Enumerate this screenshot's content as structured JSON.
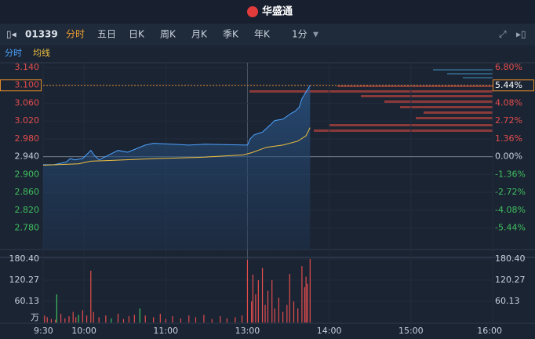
{
  "header": {
    "app": "华盛通"
  },
  "toolbar": {
    "code": "01339",
    "tabs": [
      "分时",
      "五日",
      "日K",
      "周K",
      "月K",
      "季K",
      "年K"
    ],
    "interval": "1分"
  },
  "chart_data": {
    "type": "line",
    "xlim": [
      0,
      330
    ],
    "xticks": [
      {
        "value": 0,
        "label": "9:30"
      },
      {
        "value": 30,
        "label": "10:00"
      },
      {
        "value": 90,
        "label": "11:00"
      },
      {
        "value": 150,
        "label": "13:00"
      },
      {
        "value": 210,
        "label": "14:00"
      },
      {
        "value": 270,
        "label": "15:00"
      },
      {
        "value": 330,
        "label": "16:00"
      }
    ],
    "ylim": [
      2.76,
      3.14
    ],
    "yticks": [
      {
        "value": 3.14,
        "label": "3.140"
      },
      {
        "value": 3.1,
        "label": "3.100"
      },
      {
        "value": 3.06,
        "label": "3.060"
      },
      {
        "value": 3.02,
        "label": "3.020"
      },
      {
        "value": 2.98,
        "label": "2.980"
      },
      {
        "value": 2.94,
        "label": "2.940"
      },
      {
        "value": 2.9,
        "label": "2.900"
      },
      {
        "value": 2.86,
        "label": "2.860"
      },
      {
        "value": 2.82,
        "label": "2.820"
      },
      {
        "value": 2.78,
        "label": "2.780"
      }
    ],
    "y2lim": [
      -6.122,
      6.803
    ],
    "y2ticks": [
      {
        "value": 6.8,
        "label": "6.80%"
      },
      {
        "value": 5.44,
        "label": "5.44%"
      },
      {
        "value": 4.08,
        "label": "4.08%"
      },
      {
        "value": 2.72,
        "label": "2.72%"
      },
      {
        "value": 1.36,
        "label": "1.36%"
      },
      {
        "value": 0,
        "label": "0.00%"
      },
      {
        "value": -1.36,
        "label": "-1.36%"
      },
      {
        "value": -2.72,
        "label": "-2.72%"
      },
      {
        "value": -4.08,
        "label": "-4.08%"
      },
      {
        "value": -5.44,
        "label": "-5.44%"
      }
    ],
    "prev_close": 2.94,
    "last": 3.1,
    "series": [
      {
        "name": "分时",
        "color": "#4da3ff",
        "x": [
          0,
          8,
          17,
          20,
          23,
          29,
          35,
          37,
          41,
          49,
          55,
          62,
          75,
          81,
          95,
          107,
          119,
          150,
          152,
          155,
          161,
          167,
          170,
          176,
          182,
          185,
          188,
          190,
          193,
          196
        ],
        "values": [
          2.922,
          2.922,
          2.928,
          2.936,
          2.933,
          2.936,
          2.954,
          2.945,
          2.933,
          2.945,
          2.954,
          2.95,
          2.966,
          2.97,
          2.968,
          2.966,
          2.968,
          2.966,
          2.98,
          2.989,
          2.995,
          3.012,
          3.021,
          3.024,
          3.037,
          3.042,
          3.051,
          3.07,
          3.085,
          3.1
        ]
      },
      {
        "name": "均线",
        "color": "#f0c040",
        "x": [
          0,
          26,
          35,
          84,
          118,
          147,
          153,
          164,
          176,
          187,
          193,
          196
        ],
        "values": [
          2.921,
          2.924,
          2.93,
          2.936,
          2.939,
          2.944,
          2.949,
          2.961,
          2.966,
          2.975,
          2.987,
          3.005
        ]
      }
    ],
    "volume": {
      "unit": "万",
      "ylim": [
        0,
        180.4
      ],
      "yticks": [
        60.13,
        120.27,
        {
          "value": 180.4,
          "label": "180.40"
        }
      ],
      "x": [
        1,
        3,
        6,
        9,
        10,
        13,
        16,
        19,
        22,
        24,
        26,
        29,
        32,
        35,
        37,
        41,
        46,
        50,
        55,
        59,
        63,
        67,
        71,
        75,
        81,
        86,
        90,
        95,
        101,
        107,
        112,
        118,
        124,
        130,
        135,
        141,
        146,
        150,
        153,
        154,
        156,
        158,
        161,
        163,
        165,
        168,
        170,
        173,
        176,
        179,
        181,
        184,
        187,
        190,
        192,
        193,
        194,
        196
      ],
      "values": [
        20,
        15,
        10,
        8,
        80,
        25,
        12,
        18,
        30,
        15,
        22,
        35,
        20,
        147,
        30,
        15,
        20,
        12,
        25,
        10,
        18,
        22,
        40,
        20,
        15,
        25,
        10,
        18,
        12,
        20,
        15,
        22,
        10,
        18,
        12,
        15,
        20,
        178,
        60,
        136,
        80,
        120,
        155,
        50,
        90,
        120,
        40,
        70,
        30,
        50,
        138,
        60,
        40,
        160,
        100,
        130,
        110,
        180.4
      ],
      "colors": [
        "#e24d4d",
        "#e24d4d",
        "#e24d4d",
        "#e24d4d",
        "#3fbf5f",
        "#e24d4d",
        "#e24d4d",
        "#e24d4d",
        "#e24d4d",
        "#e24d4d",
        "#3fbf5f",
        "#e24d4d",
        "#e24d4d",
        "#e24d4d",
        "#e24d4d",
        "#e24d4d",
        "#e24d4d",
        "#3fbf5f",
        "#e24d4d",
        "#e24d4d",
        "#e24d4d",
        "#e24d4d",
        "#3fbf5f",
        "#e24d4d",
        "#e24d4d",
        "#e24d4d",
        "#e24d4d",
        "#e24d4d",
        "#e24d4d",
        "#e24d4d",
        "#e24d4d",
        "#e24d4d",
        "#e24d4d",
        "#e24d4d",
        "#e24d4d",
        "#e24d4d",
        "#e24d4d",
        "#e24d4d",
        "#e24d4d",
        "#e24d4d",
        "#e24d4d",
        "#e24d4d",
        "#e24d4d",
        "#e24d4d",
        "#e24d4d",
        "#e24d4d",
        "#e24d4d",
        "#e24d4d",
        "#e24d4d",
        "#e24d4d",
        "#e24d4d",
        "#e24d4d",
        "#e24d4d",
        "#e24d4d",
        "#e24d4d",
        "#e24d4d",
        "#e24d4d",
        "#e24d4d"
      ]
    }
  }
}
